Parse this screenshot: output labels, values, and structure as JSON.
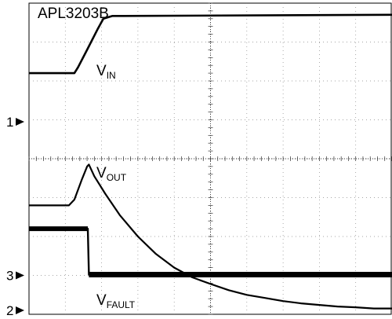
{
  "chart_data": {
    "type": "line",
    "title": "APL3203B",
    "grid": true,
    "xlim": [
      0,
      10
    ],
    "ylim": [
      0,
      8
    ],
    "series": [
      {
        "name": "V_IN",
        "label_main": "V",
        "label_sub": "IN",
        "channel": "1",
        "x": [
          0,
          1.05,
          1.25,
          1.35,
          1.6,
          1.9,
          2.05,
          2.3,
          2.6,
          10
        ],
        "y": [
          6.2,
          6.2,
          6.2,
          6.35,
          6.8,
          7.35,
          7.6,
          7.67,
          7.67,
          7.7
        ]
      },
      {
        "name": "V_OUT",
        "label_main": "V",
        "label_sub": "OUT",
        "channel": "2",
        "x": [
          0,
          1.1,
          1.25,
          1.45,
          1.6,
          1.65,
          1.8,
          2.1,
          2.5,
          3.0,
          3.5,
          4.0,
          4.5,
          5.0,
          5.5,
          6.0,
          6.5,
          7.0,
          7.5,
          8.0,
          8.5,
          9.0,
          9.5,
          10.0
        ],
        "y": [
          2.8,
          2.8,
          2.95,
          3.45,
          3.8,
          3.85,
          3.55,
          3.1,
          2.55,
          2.0,
          1.55,
          1.2,
          0.95,
          0.78,
          0.62,
          0.5,
          0.42,
          0.34,
          0.28,
          0.24,
          0.2,
          0.18,
          0.15,
          0.15
        ]
      },
      {
        "name": "V_FAULT",
        "label_main": "V",
        "label_sub": "FAULT",
        "channel": "3",
        "x": [
          0,
          1.62,
          1.65,
          10
        ],
        "y": [
          2.2,
          2.2,
          1.02,
          1.02
        ]
      }
    ],
    "markers": [
      {
        "label": "1",
        "level": 4.95
      },
      {
        "label": "3",
        "level": 1.0
      },
      {
        "label": "2",
        "level": 0.1
      }
    ]
  }
}
